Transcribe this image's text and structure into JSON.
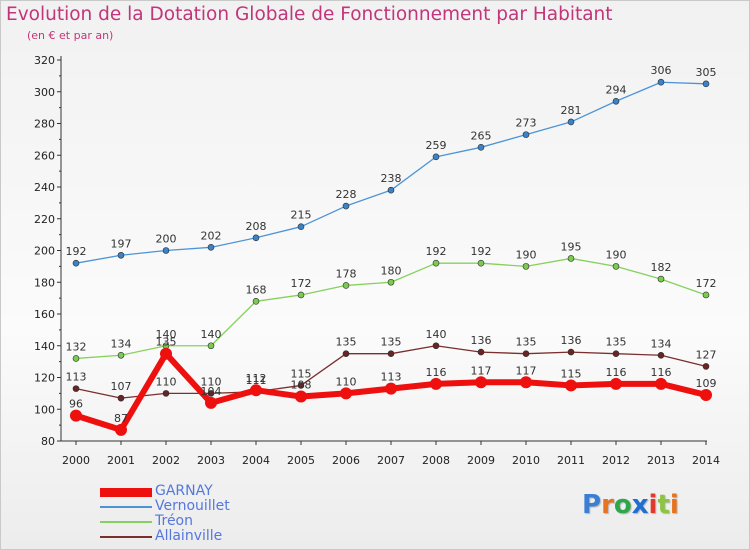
{
  "title": "Evolution de la Dotation Globale de Fonctionnement par Habitant",
  "subtitle": "(en € et par an)",
  "logo": {
    "text": "Proxiti",
    "colors": [
      "#3a7fd5",
      "#e8731e",
      "#2aa84a",
      "#1f6fd0",
      "#e03a2f",
      "#8cc63f",
      "#e8731e"
    ]
  },
  "chart_data": {
    "type": "line",
    "x": [
      "2000",
      "2001",
      "2002",
      "2003",
      "2004",
      "2005",
      "2006",
      "2007",
      "2008",
      "2009",
      "2010",
      "2011",
      "2012",
      "2013",
      "2014"
    ],
    "ylim": [
      80,
      320
    ],
    "yticks": [
      80,
      100,
      120,
      140,
      160,
      180,
      200,
      220,
      240,
      260,
      280,
      300,
      320
    ],
    "grid": false,
    "series": [
      {
        "name": "Vernouillet",
        "color": "#4d94d6",
        "marker": "#3a83c8",
        "width": 1.3,
        "values": [
          192,
          197,
          200,
          202,
          208,
          215,
          228,
          238,
          259,
          265,
          273,
          281,
          294,
          306,
          305
        ]
      },
      {
        "name": "Tréon",
        "color": "#86d15d",
        "marker": "#7acb4f",
        "width": 1.3,
        "values": [
          132,
          134,
          140,
          140,
          168,
          172,
          178,
          180,
          192,
          192,
          190,
          195,
          190,
          182,
          172
        ]
      },
      {
        "name": "Allainville",
        "color": "#7a2e2e",
        "marker": "#6b2424",
        "width": 1.3,
        "values": [
          113,
          107,
          110,
          110,
          111,
          115,
          135,
          135,
          140,
          136,
          135,
          136,
          135,
          134,
          127
        ]
      },
      {
        "name": "GARNAY",
        "color": "#ee0f0f",
        "marker": "#ee0f0f",
        "width": 6,
        "values": [
          96,
          87,
          135,
          104,
          112,
          108,
          110,
          113,
          116,
          117,
          117,
          115,
          116,
          116,
          109
        ]
      }
    ],
    "legend_order": [
      "GARNAY",
      "Vernouillet",
      "Tréon",
      "Allainville"
    ],
    "legend_position": "bottom-left"
  }
}
